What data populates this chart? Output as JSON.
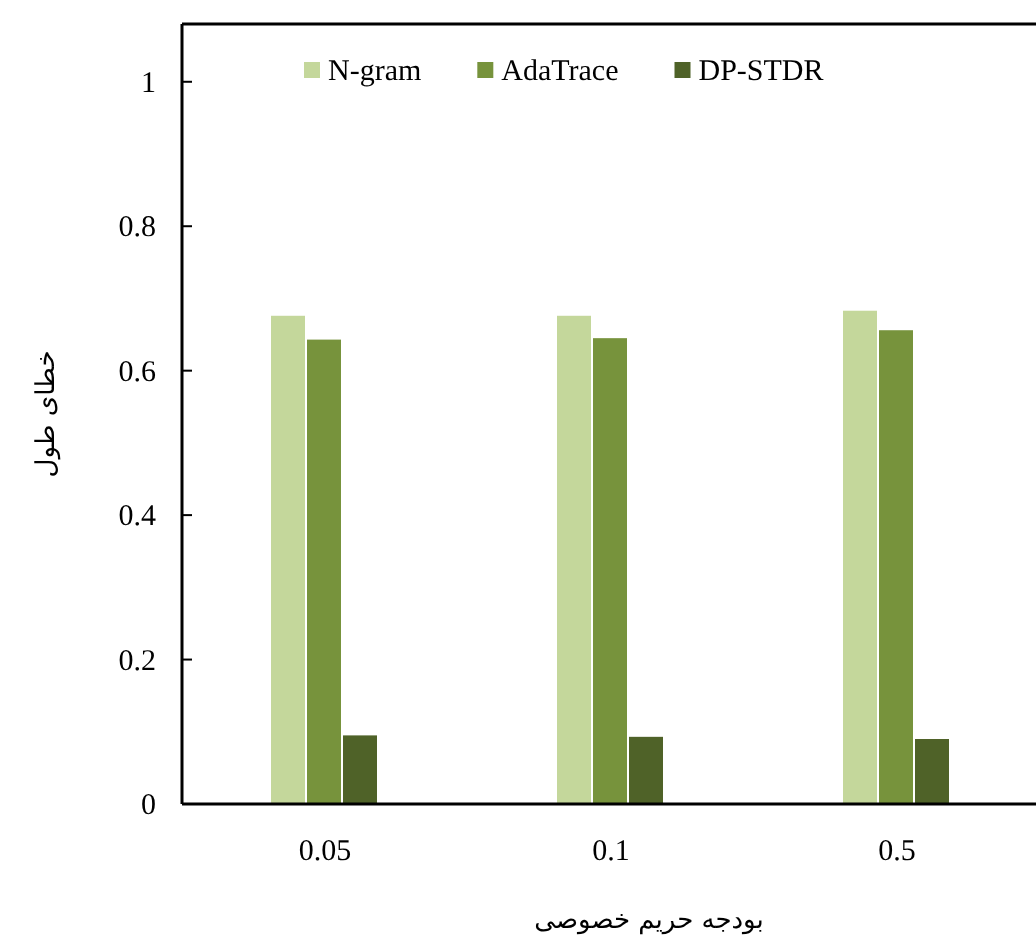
{
  "chart_data": {
    "type": "bar",
    "xlabel": "بودجه حریم خصوصی",
    "ylabel": "خطای طول",
    "categories": [
      "0.05",
      "0.1",
      "0.5"
    ],
    "series": [
      {
        "name": "N-gram",
        "color": "#c4d79b",
        "values": [
          0.676,
          0.676,
          0.683
        ]
      },
      {
        "name": "AdaTrace",
        "color": "#77933c",
        "values": [
          0.643,
          0.645,
          0.656
        ]
      },
      {
        "name": "DP-STDR",
        "color": "#4f6228",
        "values": [
          0.095,
          0.093,
          0.09
        ]
      }
    ],
    "ylim": [
      0,
      1.08
    ],
    "yticks": [
      0,
      0.2,
      0.4,
      0.6,
      0.8,
      1
    ],
    "legend": "top",
    "grid": false
  }
}
